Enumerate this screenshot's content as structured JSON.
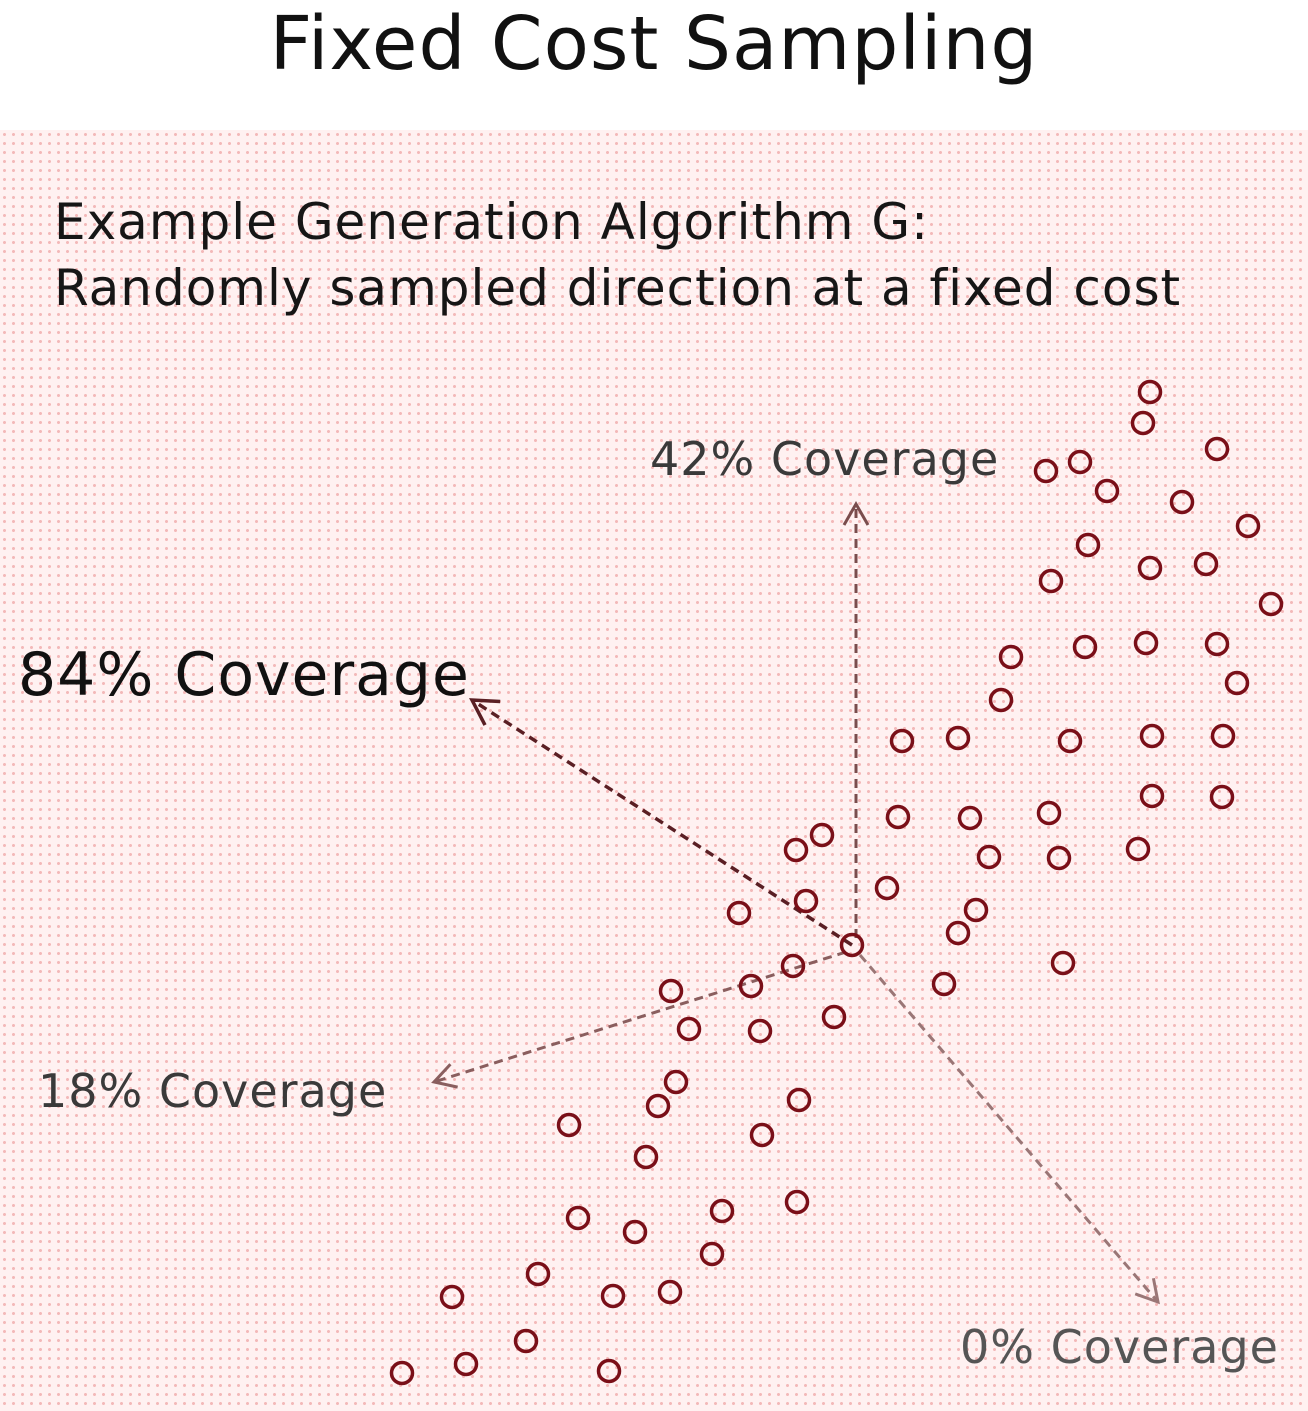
{
  "title": "Fixed Cost Sampling",
  "description": {
    "line1": "Example Generation Algorithm G:",
    "line2": "Randomly sampled direction at a fixed cost"
  },
  "directions": [
    {
      "id": "up-left",
      "label": "84% Coverage",
      "color": "#5a1f24"
    },
    {
      "id": "up",
      "label": "42% Coverage",
      "color": "#7a4d4d"
    },
    {
      "id": "left",
      "label": "18% Coverage",
      "color": "#8a5e5e"
    },
    {
      "id": "down-right",
      "label": "0% Coverage",
      "color": "#9a7676"
    }
  ],
  "colors": {
    "background": "#fff1f1",
    "dot_grid": "#f3b9b9",
    "sample_point": "#7a0f18"
  }
}
